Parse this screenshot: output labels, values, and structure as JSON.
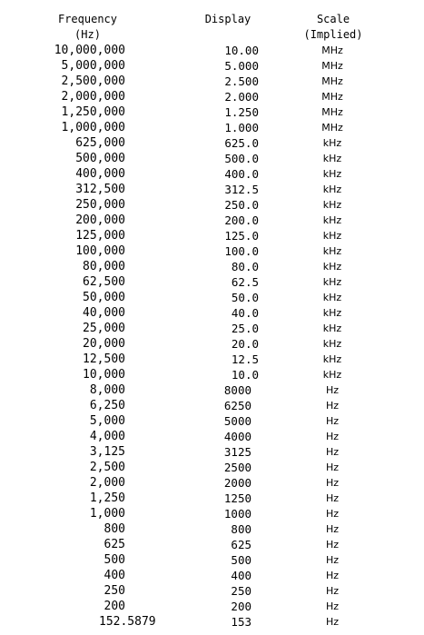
{
  "headers": {
    "frequency": "Frequency",
    "frequency_unit": "(Hz)",
    "display": "Display",
    "scale": "Scale",
    "scale_note": "(Implied)"
  },
  "rows": [
    {
      "frequency": "10,000,000",
      "display": "10.00",
      "scale": "MHz"
    },
    {
      "frequency": "5,000,000",
      "display": "5.000",
      "scale": "MHz"
    },
    {
      "frequency": "2,500,000",
      "display": "2.500",
      "scale": "MHz"
    },
    {
      "frequency": "2,000,000",
      "display": "2.000",
      "scale": "MHz"
    },
    {
      "frequency": "1,250,000",
      "display": "1.250",
      "scale": "MHz"
    },
    {
      "frequency": "1,000,000",
      "display": "1.000",
      "scale": "MHz"
    },
    {
      "frequency": "625,000",
      "display": "625.0",
      "scale": "kHz"
    },
    {
      "frequency": "500,000",
      "display": "500.0",
      "scale": "kHz"
    },
    {
      "frequency": "400,000",
      "display": "400.0",
      "scale": "kHz"
    },
    {
      "frequency": "312,500",
      "display": "312.5",
      "scale": "kHz"
    },
    {
      "frequency": "250,000",
      "display": "250.0",
      "scale": "kHz"
    },
    {
      "frequency": "200,000",
      "display": "200.0",
      "scale": "kHz"
    },
    {
      "frequency": "125,000",
      "display": "125.0",
      "scale": "kHz"
    },
    {
      "frequency": "100,000",
      "display": "100.0",
      "scale": "kHz"
    },
    {
      "frequency": "80,000",
      "display": "80.0",
      "scale": "kHz"
    },
    {
      "frequency": "62,500",
      "display": "62.5",
      "scale": "kHz"
    },
    {
      "frequency": "50,000",
      "display": "50.0",
      "scale": "kHz"
    },
    {
      "frequency": "40,000",
      "display": "40.0",
      "scale": "kHz"
    },
    {
      "frequency": "25,000",
      "display": "25.0",
      "scale": "kHz"
    },
    {
      "frequency": "20,000",
      "display": "20.0",
      "scale": "kHz"
    },
    {
      "frequency": "12,500",
      "display": "12.5",
      "scale": "kHz"
    },
    {
      "frequency": "10,000",
      "display": "10.0",
      "scale": "kHz"
    },
    {
      "frequency": "8,000",
      "display": "8000",
      "scale": "Hz"
    },
    {
      "frequency": "6,250",
      "display": "6250",
      "scale": "Hz"
    },
    {
      "frequency": "5,000",
      "display": "5000",
      "scale": "Hz"
    },
    {
      "frequency": "4,000",
      "display": "4000",
      "scale": "Hz"
    },
    {
      "frequency": "3,125",
      "display": "3125",
      "scale": "Hz"
    },
    {
      "frequency": "2,500",
      "display": "2500",
      "scale": "Hz"
    },
    {
      "frequency": "2,000",
      "display": "2000",
      "scale": "Hz"
    },
    {
      "frequency": "1,250",
      "display": "1250",
      "scale": "Hz"
    },
    {
      "frequency": "1,000",
      "display": "1000",
      "scale": "Hz"
    },
    {
      "frequency": "800",
      "display": "800",
      "scale": "Hz"
    },
    {
      "frequency": "625",
      "display": "625",
      "scale": "Hz"
    },
    {
      "frequency": "500",
      "display": "500",
      "scale": "Hz"
    },
    {
      "frequency": "400",
      "display": "400",
      "scale": "Hz"
    },
    {
      "frequency": "250",
      "display": "250",
      "scale": "Hz"
    },
    {
      "frequency": "200",
      "display": "200",
      "scale": "Hz"
    },
    {
      "frequency": "152.5879",
      "display": "153",
      "scale": "Hz"
    }
  ]
}
